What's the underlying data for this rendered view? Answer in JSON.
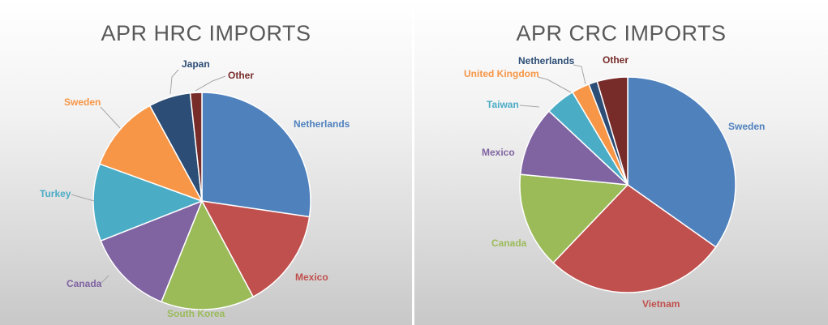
{
  "chart_data": [
    {
      "type": "pie",
      "title": "APR HRC IMPORTS",
      "slices": [
        {
          "label": "Netherlands",
          "value": 28.5,
          "color": "#4f81bd"
        },
        {
          "label": "Mexico",
          "value": 15.5,
          "color": "#c0504d"
        },
        {
          "label": "South Korea",
          "value": 14.5,
          "color": "#9bbb59"
        },
        {
          "label": "Canada",
          "value": 13.5,
          "color": "#8064a2"
        },
        {
          "label": "Turkey",
          "value": 12.0,
          "color": "#4bacc6"
        },
        {
          "label": "Sweden",
          "value": 12.0,
          "color": "#f79646"
        },
        {
          "label": "Japan",
          "value": 6.5,
          "color": "#2c4d75"
        },
        {
          "label": "Other",
          "value": 1.8,
          "color": "#772c2a"
        }
      ]
    },
    {
      "type": "pie",
      "title": "APR CRC IMPORTS",
      "slices": [
        {
          "label": "Sweden",
          "value": 35.0,
          "color": "#4f81bd"
        },
        {
          "label": "Vietnam",
          "value": 27.5,
          "color": "#c0504d"
        },
        {
          "label": "Canada",
          "value": 14.5,
          "color": "#9bbb59"
        },
        {
          "label": "Mexico",
          "value": 10.5,
          "color": "#8064a2"
        },
        {
          "label": "Taiwan",
          "value": 4.5,
          "color": "#4bacc6"
        },
        {
          "label": "United Kingdom",
          "value": 2.7,
          "color": "#f79646"
        },
        {
          "label": "Netherlands",
          "value": 1.3,
          "color": "#2c4d75"
        },
        {
          "label": "Other",
          "value": 4.6,
          "color": "#772c2a"
        }
      ]
    }
  ]
}
